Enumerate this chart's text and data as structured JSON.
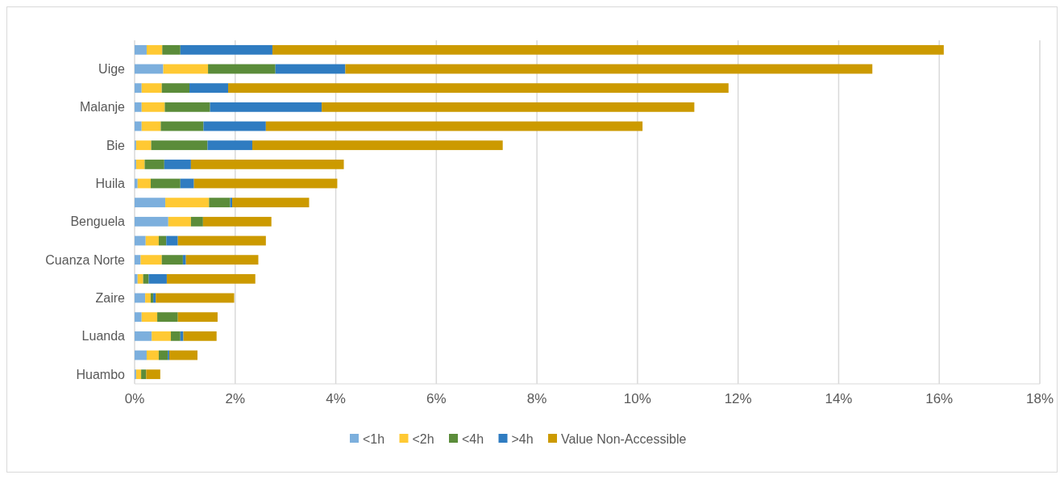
{
  "chart_data": {
    "type": "bar",
    "orientation": "horizontal",
    "stacked": true,
    "categories": [
      null,
      "Uige",
      null,
      "Malanje",
      null,
      "Bie",
      null,
      "Huila",
      null,
      "Benguela",
      null,
      "Cuanza Norte",
      null,
      "Zaire",
      null,
      "Luanda",
      null,
      "Huambo"
    ],
    "series": [
      {
        "name": "<1h",
        "color": "#7cafdd",
        "values": [
          0.24,
          0.57,
          0.14,
          0.14,
          0.14,
          0.03,
          0.03,
          0.06,
          0.61,
          0.67,
          0.22,
          0.12,
          0.06,
          0.21,
          0.14,
          0.34,
          0.24,
          0.03
        ]
      },
      {
        "name": "<2h",
        "color": "#ffc933",
        "values": [
          0.31,
          0.89,
          0.4,
          0.46,
          0.38,
          0.3,
          0.17,
          0.26,
          0.87,
          0.45,
          0.26,
          0.42,
          0.11,
          0.11,
          0.31,
          0.38,
          0.24,
          0.1
        ]
      },
      {
        "name": "<4h",
        "color": "#5b8c3a",
        "values": [
          0.36,
          1.34,
          0.55,
          0.9,
          0.85,
          1.12,
          0.39,
          0.59,
          0.42,
          0.24,
          0.15,
          0.42,
          0.11,
          0.05,
          0.41,
          0.19,
          0.18,
          0.1
        ]
      },
      {
        "name": ">4h",
        "color": "#2f7cc1",
        "values": [
          1.83,
          1.39,
          0.77,
          2.22,
          1.24,
          0.89,
          0.53,
          0.27,
          0.04,
          null,
          0.23,
          0.06,
          0.36,
          0.05,
          null,
          0.06,
          0.03,
          0
        ]
      },
      {
        "name": "Value Non-Accessible",
        "color": "#cc9a00",
        "values": [
          13.35,
          10.48,
          9.95,
          7.41,
          7.49,
          4.98,
          3.04,
          2.85,
          1.53,
          1.36,
          1.75,
          1.44,
          1.76,
          1.56,
          0.79,
          0.66,
          0.56,
          0.28
        ]
      }
    ],
    "xlim": [
      0,
      18
    ],
    "xticks": [
      {
        "value": 0,
        "label": "0%"
      },
      {
        "value": 2,
        "label": "2%"
      },
      {
        "value": 4,
        "label": "4%"
      },
      {
        "value": 6,
        "label": "6%"
      },
      {
        "value": 8,
        "label": "8%"
      },
      {
        "value": 10,
        "label": "10%"
      },
      {
        "value": 12,
        "label": "12%"
      },
      {
        "value": 14,
        "label": "14%"
      },
      {
        "value": 16,
        "label": "16%"
      },
      {
        "value": 18,
        "label": "18%"
      }
    ],
    "grid": "x",
    "legend": "bottom"
  }
}
